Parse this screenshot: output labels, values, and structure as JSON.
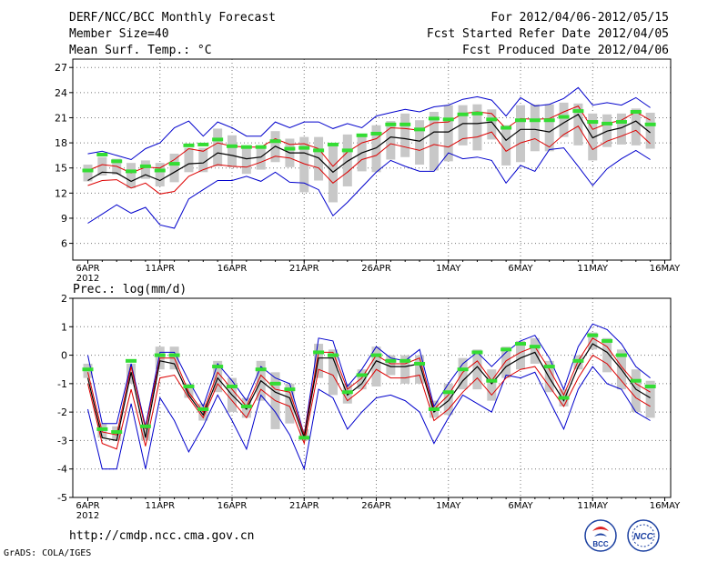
{
  "header": {
    "title": "DERF/NCC/BCC Monthly Forecast",
    "member_size": "Member Size=40",
    "variable": "Mean Surf. Temp.: °C",
    "period": "For 2012/04/06-2012/05/15",
    "fcst_started": "Fcst Started Refer Date 2012/04/05",
    "fcst_produced": "Fcst Produced Date 2012/04/06"
  },
  "footer": {
    "url": "http://cmdp.ncc.cma.gov.cn",
    "grads": "GrADS: COLA/IGES",
    "logo_bcc": "BCC",
    "logo_ncc": "NCC"
  },
  "colors": {
    "envelope": "#0000cc",
    "band": "#dd0000",
    "mean": "#000000",
    "obs": "#33dd33",
    "box": "#c8c8c8"
  },
  "chart_data": [
    {
      "type": "line",
      "title": "Mean Surf. Temp.: °C",
      "x_labels": [
        "6APR",
        "11APR",
        "16APR",
        "21APR",
        "26APR",
        "1MAY",
        "6MAY",
        "11MAY",
        "16MAY"
      ],
      "x_year": "2012",
      "x_label_days": [
        0,
        5,
        10,
        15,
        20,
        25,
        30,
        35,
        40
      ],
      "ylim": [
        4,
        28
      ],
      "yticks": [
        6,
        9,
        12,
        15,
        18,
        21,
        24,
        27
      ],
      "days": [
        0,
        1,
        2,
        3,
        4,
        5,
        6,
        7,
        8,
        9,
        10,
        11,
        12,
        13,
        14,
        15,
        16,
        17,
        18,
        19,
        20,
        21,
        22,
        23,
        24,
        25,
        26,
        27,
        28,
        29,
        30,
        31,
        32,
        33,
        34,
        35,
        36,
        37,
        38,
        39
      ],
      "max": [
        16.7,
        17.0,
        16.5,
        16.0,
        17.3,
        18.0,
        19.8,
        20.6,
        18.8,
        20.5,
        19.8,
        18.8,
        18.8,
        20.5,
        19.8,
        20.5,
        20.5,
        19.7,
        20.3,
        19.8,
        21.2,
        21.6,
        22.0,
        21.7,
        22.3,
        22.5,
        23.2,
        23.5,
        23.1,
        21.2,
        23.4,
        22.4,
        22.6,
        23.3,
        24.6,
        22.5,
        22.8,
        22.5,
        23.4,
        22.2
      ],
      "upper": [
        14.7,
        15.4,
        15.2,
        14.4,
        15.1,
        15.0,
        16.0,
        17.3,
        17.0,
        18.0,
        17.6,
        17.5,
        17.5,
        18.5,
        17.8,
        17.9,
        17.3,
        15.2,
        16.9,
        18.0,
        18.5,
        19.8,
        19.7,
        19.5,
        20.4,
        20.5,
        21.5,
        21.7,
        21.5,
        19.7,
        20.9,
        20.8,
        20.9,
        21.7,
        22.4,
        19.6,
        20.3,
        20.7,
        21.7,
        20.7
      ],
      "mean": [
        13.5,
        14.5,
        14.4,
        13.4,
        14.2,
        13.5,
        14.5,
        15.5,
        15.6,
        16.8,
        16.5,
        16.1,
        16.3,
        17.6,
        16.8,
        16.8,
        16.2,
        14.5,
        15.8,
        16.8,
        17.4,
        18.7,
        18.5,
        18.2,
        19.3,
        19.3,
        20.3,
        20.3,
        20.5,
        18.3,
        19.6,
        19.6,
        19.3,
        20.4,
        21.4,
        18.6,
        19.4,
        19.8,
        20.6,
        19.2
      ],
      "lower": [
        12.9,
        13.5,
        13.6,
        12.6,
        13.2,
        11.9,
        12.2,
        14.0,
        14.8,
        15.4,
        15.2,
        15.1,
        15.7,
        16.4,
        16.2,
        15.5,
        15.0,
        13.2,
        14.5,
        16.0,
        16.5,
        17.9,
        17.5,
        17.1,
        17.8,
        17.5,
        18.5,
        18.7,
        19.3,
        17.0,
        18.0,
        18.5,
        17.5,
        19.0,
        20.0,
        17.2,
        18.2,
        18.8,
        19.5,
        17.9
      ],
      "min": [
        8.4,
        9.5,
        10.6,
        9.6,
        10.3,
        8.2,
        7.8,
        11.3,
        12.4,
        13.5,
        13.5,
        14.0,
        13.4,
        14.5,
        13.3,
        13.2,
        12.4,
        9.3,
        10.9,
        12.7,
        14.5,
        15.9,
        15.2,
        14.6,
        14.6,
        16.8,
        16.1,
        16.3,
        15.9,
        13.2,
        15.3,
        14.6,
        17.2,
        17.4,
        15.2,
        12.9,
        14.9,
        16.1,
        17.1,
        16.0
      ],
      "box_high": [
        15.4,
        16.3,
        16.1,
        15.6,
        15.9,
        15.6,
        16.7,
        17.4,
        17.4,
        19.7,
        18.9,
        17.7,
        17.7,
        19.4,
        18.5,
        18.7,
        18.7,
        17.6,
        19.0,
        18.9,
        20.1,
        20.6,
        21.5,
        20.7,
        21.7,
        22.5,
        22.5,
        22.6,
        22.0,
        20.1,
        22.5,
        22.6,
        22.6,
        22.8,
        22.7,
        21.5,
        21.4,
        21.5,
        22.1,
        21.6
      ],
      "box_low": [
        13.4,
        14.1,
        14.2,
        12.6,
        13.7,
        12.8,
        13.3,
        14.5,
        14.5,
        15.2,
        15.1,
        14.3,
        14.8,
        15.7,
        15.1,
        12.1,
        13.5,
        10.9,
        12.8,
        14.6,
        14.5,
        16.0,
        16.3,
        15.4,
        14.7,
        15.8,
        17.7,
        17.1,
        18.4,
        15.3,
        15.7,
        17.0,
        17.0,
        18.7,
        17.7,
        15.9,
        17.5,
        17.8,
        17.7,
        17.3
      ],
      "obs": [
        14.7,
        16.6,
        15.8,
        14.6,
        15.2,
        14.7,
        15.5,
        17.7,
        17.8,
        18.4,
        17.6,
        17.5,
        17.5,
        18.2,
        17.3,
        17.4,
        17.1,
        17.8,
        17.1,
        18.9,
        19.1,
        20.2,
        20.2,
        19.6,
        20.9,
        20.8,
        21.4,
        21.5,
        20.8,
        19.8,
        20.7,
        20.7,
        20.7,
        21.1,
        21.8,
        20.5,
        20.3,
        20.5,
        21.7,
        20.2
      ]
    },
    {
      "type": "line",
      "title": "Prec.: log(mm/d)",
      "x_labels": [
        "6APR",
        "11APR",
        "16APR",
        "21APR",
        "26APR",
        "1MAY",
        "6MAY",
        "11MAY",
        "16MAY"
      ],
      "x_year": "2012",
      "x_label_days": [
        0,
        5,
        10,
        15,
        20,
        25,
        30,
        35,
        40
      ],
      "ylim": [
        -5,
        2
      ],
      "yticks": [
        -5,
        -4,
        -3,
        -2,
        -1,
        0,
        1,
        2
      ],
      "days": [
        0,
        1,
        2,
        3,
        4,
        5,
        6,
        7,
        8,
        9,
        10,
        11,
        12,
        13,
        14,
        15,
        16,
        17,
        18,
        19,
        20,
        21,
        22,
        23,
        24,
        25,
        26,
        27,
        28,
        29,
        30,
        31,
        32,
        33,
        34,
        35,
        36,
        37,
        38,
        39
      ],
      "max": [
        0.0,
        -2.4,
        -2.4,
        -0.3,
        -2.5,
        0.1,
        0.1,
        -0.9,
        -1.8,
        -0.3,
        -0.9,
        -1.6,
        -0.4,
        -0.8,
        -1.0,
        -2.8,
        0.6,
        0.5,
        -1.1,
        -0.5,
        0.3,
        -0.1,
        -0.2,
        0.2,
        -1.8,
        -1.0,
        -0.3,
        0.1,
        -0.4,
        0.1,
        0.5,
        0.7,
        -0.1,
        -1.2,
        0.3,
        1.1,
        0.9,
        0.4,
        -0.4,
        -0.8
      ],
      "upper": [
        -0.6,
        -2.7,
        -2.8,
        -0.4,
        -2.6,
        -0.1,
        -0.1,
        -1.3,
        -2.0,
        -0.6,
        -1.2,
        -1.8,
        -0.7,
        -1.2,
        -1.3,
        -2.8,
        0.1,
        0.1,
        -1.2,
        -0.8,
        0.0,
        -0.3,
        -0.3,
        -0.1,
        -1.9,
        -1.4,
        -0.6,
        -0.2,
        -0.9,
        -0.2,
        0.1,
        0.3,
        -0.5,
        -1.4,
        -0.2,
        0.6,
        0.3,
        -0.4,
        -1.0,
        -1.3
      ],
      "mean": [
        -0.8,
        -2.9,
        -3.0,
        -0.6,
        -2.9,
        -0.2,
        -0.3,
        -1.4,
        -2.1,
        -0.8,
        -1.4,
        -1.9,
        -0.9,
        -1.3,
        -1.5,
        -2.9,
        -0.1,
        -0.1,
        -1.4,
        -1.0,
        -0.2,
        -0.4,
        -0.4,
        -0.3,
        -2.0,
        -1.6,
        -0.9,
        -0.4,
        -1.0,
        -0.4,
        -0.1,
        0.1,
        -0.8,
        -1.6,
        -0.4,
        0.4,
        0.1,
        -0.5,
        -1.2,
        -1.5
      ],
      "lower": [
        -1.0,
        -3.1,
        -3.3,
        -1.2,
        -3.2,
        -0.8,
        -0.7,
        -1.5,
        -2.2,
        -1.0,
        -1.6,
        -2.2,
        -1.2,
        -1.6,
        -1.8,
        -3.1,
        -0.5,
        -0.7,
        -1.6,
        -1.2,
        -0.5,
        -0.8,
        -0.8,
        -0.7,
        -2.3,
        -1.9,
        -1.3,
        -0.8,
        -1.4,
        -0.8,
        -0.5,
        -0.4,
        -1.1,
        -1.8,
        -0.8,
        0.0,
        -0.3,
        -0.9,
        -1.5,
        -1.8
      ],
      "min": [
        -1.9,
        -4.0,
        -4.0,
        -1.7,
        -4.0,
        -1.5,
        -2.3,
        -3.4,
        -2.5,
        -1.4,
        -2.3,
        -3.3,
        -1.4,
        -2.0,
        -2.8,
        -4.0,
        -1.2,
        -1.5,
        -2.6,
        -2.0,
        -1.5,
        -1.4,
        -1.6,
        -2.0,
        -3.1,
        -2.2,
        -1.4,
        -1.7,
        -2.0,
        -0.7,
        -0.8,
        -0.6,
        -1.6,
        -2.6,
        -1.2,
        -0.4,
        -1.0,
        -1.2,
        -2.0,
        -2.3
      ],
      "box_high": [
        -0.3,
        -2.4,
        -2.5,
        -0.3,
        -2.5,
        0.3,
        0.3,
        -1.0,
        -1.7,
        -0.2,
        -0.8,
        -1.5,
        -0.2,
        -0.6,
        -1.0,
        -2.6,
        0.4,
        0.2,
        -1.0,
        -0.5,
        0.3,
        0.0,
        0.0,
        0.0,
        -1.6,
        -1.0,
        -0.1,
        0.2,
        -0.5,
        0.3,
        0.5,
        0.6,
        -0.2,
        -1.2,
        0.0,
        0.8,
        0.6,
        0.2,
        -0.5,
        -0.9
      ],
      "box_low": [
        -0.8,
        -2.9,
        -3.0,
        -1.0,
        -3.0,
        -0.5,
        -0.5,
        -1.5,
        -2.3,
        -1.3,
        -2.0,
        -2.2,
        -1.6,
        -2.6,
        -2.4,
        -3.0,
        -0.8,
        -1.4,
        -1.7,
        -1.2,
        -1.1,
        -0.7,
        -1.0,
        -1.0,
        -2.2,
        -2.1,
        -1.2,
        -1.2,
        -1.6,
        -0.8,
        -0.5,
        -0.3,
        -1.3,
        -1.8,
        -0.5,
        0.2,
        -0.6,
        -1.2,
        -2.0,
        -2.2
      ],
      "obs": [
        -0.5,
        -2.6,
        -2.7,
        -0.2,
        -2.5,
        0.0,
        0.0,
        -1.1,
        -1.9,
        -0.4,
        -1.1,
        -1.8,
        -0.5,
        -1.0,
        -1.2,
        -2.9,
        0.1,
        0.0,
        -1.3,
        -0.7,
        0.0,
        -0.2,
        -0.2,
        -0.3,
        -1.9,
        -1.3,
        -0.5,
        0.1,
        -0.9,
        0.2,
        0.4,
        0.3,
        -0.4,
        -1.5,
        -0.2,
        0.7,
        0.5,
        0.0,
        -0.9,
        -1.1
      ]
    }
  ]
}
